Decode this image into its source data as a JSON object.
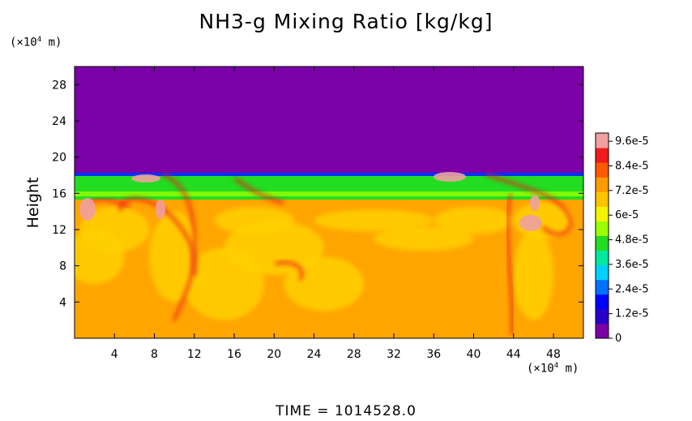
{
  "chart_data": {
    "type": "heatmap",
    "title": "NH3-g Mixing Ratio [kg/kg]",
    "ylabel": "Height",
    "x_unit_base": "(×10",
    "x_unit_exp": "4",
    "x_unit_tail": " m)",
    "y_unit_base": "(×10",
    "y_unit_exp": "4",
    "y_unit_tail": " m)",
    "xlim": [
      0,
      51
    ],
    "ylim": [
      0,
      30
    ],
    "x_ticks": [
      "4",
      "8",
      "12",
      "16",
      "20",
      "24",
      "28",
      "32",
      "36",
      "40",
      "44",
      "48"
    ],
    "y_ticks": [
      "4",
      "8",
      "12",
      "16",
      "20",
      "24",
      "28"
    ],
    "colorbar": {
      "min": 0,
      "max": 0.0001,
      "tick_labels": [
        "0",
        "1.2e-5",
        "2.4e-5",
        "3.6e-5",
        "4.8e-5",
        "6e-5",
        "7.2e-5",
        "8.4e-5",
        "9.6e-5"
      ],
      "colors": [
        "#7b00a8",
        "#2a00c8",
        "#0000ff",
        "#0070ff",
        "#00d0ff",
        "#00e8a0",
        "#22dd22",
        "#9bff00",
        "#f4f400",
        "#ffc400",
        "#ff9a00",
        "#ff5a00",
        "#ee1c1c",
        "#f0a0a0"
      ]
    },
    "field_summary": {
      "upper_region_color": "#7b00a8",
      "interface_height": 18,
      "band_color": "#22dd22",
      "lower_region_color": "#ffa500"
    },
    "time_label": "TIME  =  1014528.0"
  }
}
